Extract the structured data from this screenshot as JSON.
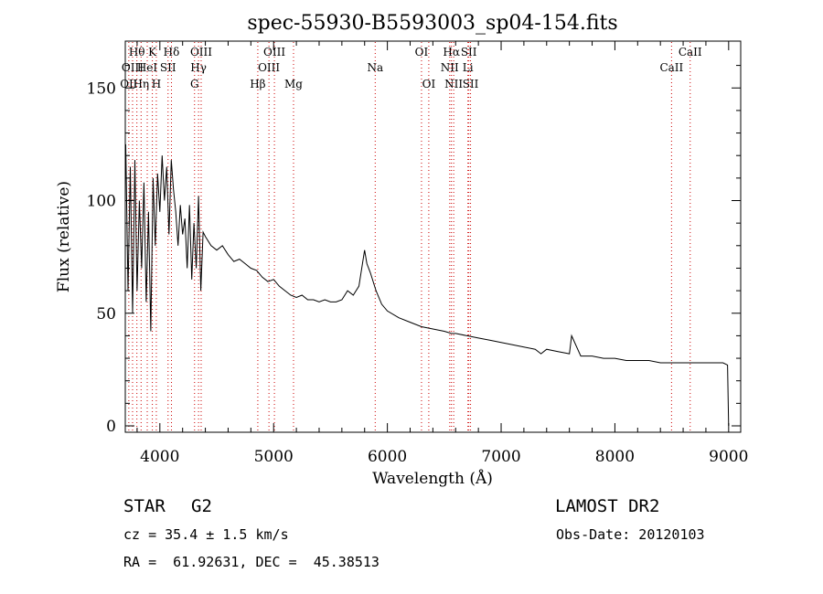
{
  "chart_data": {
    "type": "line",
    "title": "spec-55930-B5593003_sp04-154.fits",
    "xlabel": "Wavelength (Å)",
    "ylabel": "Flux (relative)",
    "xlim": [
      3700,
      9100
    ],
    "ylim": [
      0,
      170
    ],
    "x_ticks": [
      4000,
      5000,
      6000,
      7000,
      8000,
      9000
    ],
    "y_ticks": [
      0,
      50,
      100,
      150
    ],
    "grid": false,
    "line_color": "#000000",
    "marker_color": "#cc0000",
    "series": [
      {
        "x": [
          3700,
          3720,
          3740,
          3760,
          3780,
          3800,
          3820,
          3840,
          3860,
          3880,
          3900,
          3920,
          3940,
          3960,
          3980,
          4000,
          4020,
          4040,
          4060,
          4080,
          4100,
          4120,
          4140,
          4160,
          4180,
          4200,
          4220,
          4240,
          4260,
          4280,
          4300,
          4320,
          4340,
          4360,
          4380,
          4400,
          4450,
          4500,
          4550,
          4600,
          4650,
          4700,
          4750,
          4800,
          4850,
          4900,
          4950,
          5000,
          5050,
          5100,
          5150,
          5200,
          5250,
          5300,
          5350,
          5400,
          5450,
          5500,
          5550,
          5600,
          5650,
          5700,
          5750,
          5800,
          5820,
          5850,
          5900,
          5950,
          6000,
          6100,
          6200,
          6300,
          6400,
          6500,
          6563,
          6600,
          6700,
          6800,
          6900,
          7000,
          7100,
          7200,
          7300,
          7350,
          7400,
          7500,
          7600,
          7620,
          7700,
          7800,
          7900,
          8000,
          8100,
          8200,
          8300,
          8400,
          8500,
          8600,
          8700,
          8800,
          8900,
          8950,
          8990,
          9000
        ],
        "values": [
          125,
          60,
          115,
          50,
          118,
          60,
          100,
          70,
          108,
          55,
          95,
          42,
          110,
          80,
          112,
          95,
          120,
          100,
          115,
          85,
          118,
          105,
          95,
          80,
          98,
          85,
          92,
          70,
          98,
          65,
          90,
          70,
          102,
          60,
          86,
          84,
          80,
          78,
          80,
          76,
          73,
          74,
          72,
          70,
          69,
          66,
          64,
          65,
          62,
          60,
          58,
          57,
          58,
          56,
          56,
          55,
          56,
          55,
          55,
          56,
          60,
          58,
          62,
          78,
          72,
          68,
          60,
          54,
          51,
          48,
          46,
          44,
          43,
          42,
          41,
          41,
          40,
          39,
          38,
          37,
          36,
          35,
          34,
          32,
          34,
          33,
          32,
          40,
          31,
          31,
          30,
          30,
          29,
          29,
          29,
          28,
          28,
          28,
          28,
          28,
          28,
          28,
          27,
          0
        ]
      }
    ],
    "lines": [
      {
        "name": "Hθ",
        "x": 3798
      },
      {
        "name": "OII",
        "x": 3727
      },
      {
        "name": "OIII",
        "x": 3760
      },
      {
        "name": "Hη",
        "x": 3835
      },
      {
        "name": "HeI",
        "x": 3889
      },
      {
        "name": "K",
        "x": 3934
      },
      {
        "name": "H",
        "x": 3969
      },
      {
        "name": "SII",
        "x": 4072
      },
      {
        "name": "Hδ",
        "x": 4102
      },
      {
        "name": "OIII",
        "x": 4363
      },
      {
        "name": "Hγ",
        "x": 4340
      },
      {
        "name": "G",
        "x": 4305
      },
      {
        "name": "Hβ",
        "x": 4861
      },
      {
        "name": "OIII",
        "x": 4959
      },
      {
        "name": "OIII",
        "x": 5007
      },
      {
        "name": "Mg",
        "x": 5175
      },
      {
        "name": "Na",
        "x": 5893
      },
      {
        "name": "OI",
        "x": 6300
      },
      {
        "name": "OI",
        "x": 6364
      },
      {
        "name": "Hα",
        "x": 6563
      },
      {
        "name": "NII",
        "x": 6548
      },
      {
        "name": "NII",
        "x": 6583
      },
      {
        "name": "SII",
        "x": 6716
      },
      {
        "name": "SII",
        "x": 6731
      },
      {
        "name": "Li",
        "x": 6708
      },
      {
        "name": "CaII",
        "x": 8498
      },
      {
        "name": "CaII",
        "x": 8662
      }
    ],
    "labels_upper": [
      {
        "text": "Hθ",
        "x": 3798
      },
      {
        "text": "K",
        "x": 3934
      },
      {
        "text": "Hδ",
        "x": 4102
      },
      {
        "text": "OIII",
        "x": 4363
      },
      {
        "text": "OIII",
        "x": 5007
      },
      {
        "text": "OI",
        "x": 6300
      },
      {
        "text": "Hα",
        "x": 6563
      },
      {
        "text": "SII",
        "x": 6716
      },
      {
        "text": "CaII",
        "x": 8662
      }
    ],
    "labels_middle": [
      {
        "text": "OIII",
        "x": 3760
      },
      {
        "text": "HeI",
        "x": 3889
      },
      {
        "text": "SII",
        "x": 4072
      },
      {
        "text": "Hγ",
        "x": 4340
      },
      {
        "text": "OIII",
        "x": 4959
      },
      {
        "text": "Na",
        "x": 5893
      },
      {
        "text": "NII",
        "x": 6548
      },
      {
        "text": "Li",
        "x": 6708
      },
      {
        "text": "CaII",
        "x": 8498
      }
    ],
    "labels_lower": [
      {
        "text": "OII",
        "x": 3727
      },
      {
        "text": "Hη",
        "x": 3835
      },
      {
        "text": "H",
        "x": 3969
      },
      {
        "text": "G",
        "x": 4305
      },
      {
        "text": "Hβ",
        "x": 4861
      },
      {
        "text": "Mg",
        "x": 5175
      },
      {
        "text": "OI",
        "x": 6364
      },
      {
        "text": "NII",
        "x": 6583
      },
      {
        "text": "SII",
        "x": 6731
      }
    ]
  },
  "info": {
    "object_type": "STAR",
    "subclass": "G2",
    "survey": "LAMOST DR2",
    "cz": "cz = 35.4 ± 1.5 km/s",
    "obs_date": "Obs-Date: 20120103",
    "coords": "RA =  61.92631, DEC =  45.38513"
  }
}
